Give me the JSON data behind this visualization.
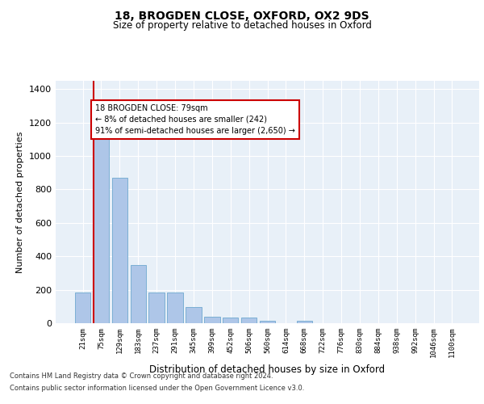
{
  "title": "18, BROGDEN CLOSE, OXFORD, OX2 9DS",
  "subtitle": "Size of property relative to detached houses in Oxford",
  "xlabel": "Distribution of detached houses by size in Oxford",
  "ylabel": "Number of detached properties",
  "bar_labels": [
    "21sqm",
    "75sqm",
    "129sqm",
    "183sqm",
    "237sqm",
    "291sqm",
    "345sqm",
    "399sqm",
    "452sqm",
    "506sqm",
    "560sqm",
    "614sqm",
    "668sqm",
    "722sqm",
    "776sqm",
    "830sqm",
    "884sqm",
    "938sqm",
    "992sqm",
    "1046sqm",
    "1100sqm"
  ],
  "bar_values": [
    185,
    1140,
    870,
    350,
    185,
    185,
    95,
    40,
    35,
    35,
    15,
    0,
    15,
    0,
    0,
    0,
    0,
    0,
    0,
    0,
    0
  ],
  "bar_color": "#aec6e8",
  "bar_edgecolor": "#7bafd4",
  "property_line_color": "#cc0000",
  "annotation_text": "18 BROGDEN CLOSE: 79sqm\n← 8% of detached houses are smaller (242)\n91% of semi-detached houses are larger (2,650) →",
  "annotation_box_color": "#cc0000",
  "ylim": [
    0,
    1450
  ],
  "yticks": [
    0,
    200,
    400,
    600,
    800,
    1000,
    1200,
    1400
  ],
  "background_color": "#e8f0f8",
  "footer_line1": "Contains HM Land Registry data © Crown copyright and database right 2024.",
  "footer_line2": "Contains public sector information licensed under the Open Government Licence v3.0."
}
